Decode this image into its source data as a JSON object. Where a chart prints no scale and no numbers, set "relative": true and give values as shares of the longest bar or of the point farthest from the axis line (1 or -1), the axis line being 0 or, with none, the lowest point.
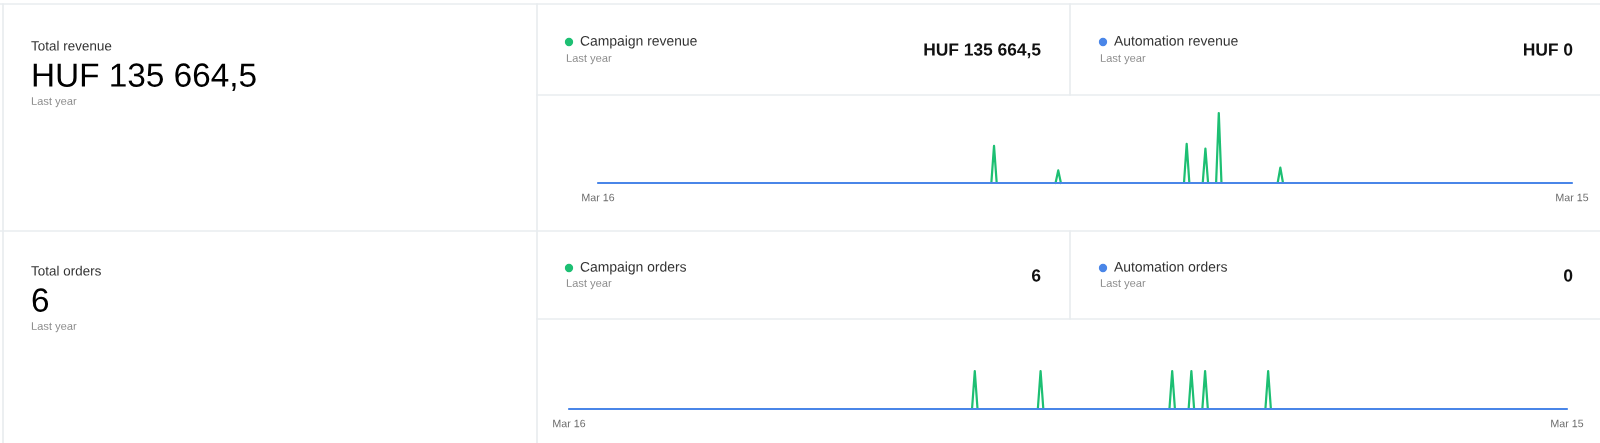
{
  "chart_data": [
    {
      "type": "other",
      "title": "Total revenue",
      "annotations": [
        "HUF 135 664,5",
        "Last year"
      ]
    },
    {
      "type": "line",
      "relative": true,
      "legend": "top",
      "categories": [
        "Mar 16",
        null,
        null,
        null,
        null,
        null,
        null,
        null,
        null,
        null,
        null,
        null,
        null,
        null,
        null,
        null,
        null,
        null,
        null,
        null,
        null,
        null,
        null,
        null,
        null,
        null,
        null,
        null,
        null,
        null,
        null,
        null,
        null,
        null,
        null,
        null,
        null,
        null,
        null,
        null,
        null,
        null,
        null,
        null,
        null,
        null,
        null,
        null,
        null,
        null,
        null,
        null,
        null,
        null,
        null,
        null,
        null,
        null,
        null,
        null,
        null,
        null,
        null,
        null,
        null,
        null,
        null,
        null,
        null,
        null,
        null,
        null,
        null,
        null,
        null,
        null,
        null,
        null,
        null,
        null,
        null,
        null,
        null,
        null,
        null,
        null,
        null,
        null,
        null,
        null,
        null,
        null,
        null,
        null,
        null,
        null,
        null,
        null,
        null,
        null,
        null,
        null,
        null,
        null,
        null,
        null,
        null,
        null,
        null,
        null,
        null,
        null,
        null,
        null,
        null,
        null,
        null,
        null,
        null,
        null,
        null,
        null,
        null,
        null,
        null,
        null,
        null,
        null,
        null,
        null,
        null,
        null,
        null,
        null,
        null,
        null,
        null,
        null,
        null,
        null,
        null,
        null,
        null,
        null,
        null,
        null,
        null,
        null,
        null,
        null,
        null,
        null,
        null,
        null,
        null,
        null,
        null,
        null,
        null,
        null,
        null,
        null,
        null,
        null,
        null,
        null,
        null,
        null,
        null,
        null,
        null,
        null,
        null,
        null,
        null,
        null,
        null,
        null,
        null,
        null,
        null,
        null,
        null,
        null,
        null,
        null,
        null,
        null,
        null,
        null,
        null,
        null,
        null,
        null,
        null,
        null,
        null,
        null,
        null,
        null,
        null,
        null,
        null,
        null,
        null,
        null,
        null,
        null,
        null,
        null,
        null,
        null,
        null,
        null,
        null,
        null,
        null,
        null,
        null,
        null,
        null,
        null,
        null,
        null,
        null,
        null,
        null,
        null,
        null,
        null,
        null,
        null,
        null,
        null,
        null,
        null,
        null,
        null,
        null,
        null,
        null,
        null,
        null,
        null,
        null,
        null,
        null,
        null,
        null,
        null,
        null,
        null,
        null,
        null,
        null,
        null,
        null,
        null,
        null,
        null,
        null,
        null,
        null,
        null,
        null,
        null,
        null,
        null,
        null,
        null,
        null,
        null,
        null,
        null,
        null,
        null,
        null,
        null,
        null,
        null,
        null,
        null,
        null,
        null,
        null,
        null,
        null,
        null,
        null,
        null,
        null,
        null,
        null,
        null,
        null,
        null,
        null,
        null,
        null,
        null,
        null,
        null,
        null,
        null,
        null,
        null,
        null,
        null,
        null,
        null,
        null,
        null,
        null,
        null,
        null,
        null,
        null,
        null,
        null,
        null,
        null,
        null,
        null,
        null,
        null,
        null,
        null,
        null,
        null,
        null,
        null,
        null,
        null,
        null,
        null,
        null,
        null,
        null,
        null,
        null,
        null,
        null,
        null,
        null,
        null,
        null,
        null,
        null,
        null,
        null,
        null,
        null,
        null,
        null,
        null,
        null,
        null,
        null,
        null,
        null,
        null,
        null,
        null,
        null,
        "Mar 15"
      ],
      "series": [
        {
          "name": "Campaign revenue",
          "color": "#1dbf73",
          "values": [
            null,
            null,
            null,
            null,
            null,
            null,
            null,
            null,
            null,
            null,
            null,
            null,
            null,
            null,
            null,
            null,
            null,
            null,
            null,
            null,
            null,
            null,
            null,
            null,
            null,
            null,
            null,
            null,
            null,
            null,
            null,
            null,
            null,
            null,
            null,
            null,
            null,
            null,
            null,
            null,
            null,
            null,
            null,
            null,
            null,
            null,
            null,
            null,
            null,
            null,
            null,
            null,
            null,
            null,
            null,
            null,
            null,
            null,
            null,
            null,
            null,
            null,
            null,
            null,
            null,
            null,
            null,
            null,
            null,
            null,
            null,
            null,
            null,
            null,
            null,
            null,
            null,
            null,
            null,
            null,
            null,
            null,
            null,
            null,
            null,
            null,
            null,
            null,
            null,
            null,
            null,
            null,
            null,
            null,
            null,
            null,
            null,
            null,
            null,
            null,
            null,
            null,
            null,
            null,
            null,
            null,
            null,
            null,
            null,
            null,
            null,
            null,
            null,
            null,
            null,
            null,
            null,
            null,
            null,
            null,
            null,
            null,
            null,
            null,
            null,
            null,
            null,
            null,
            null,
            null,
            null,
            null,
            null,
            null,
            null,
            null,
            null,
            null,
            null,
            null,
            null,
            null,
            null,
            null,
            null,
            null,
            null,
            0,
            0.53,
            0,
            null,
            null,
            null,
            null,
            null,
            null,
            null,
            null,
            null,
            null,
            null,
            null,
            null,
            null,
            null,
            null,
            null,
            null,
            null,
            null,
            null,
            0,
            0.18,
            0,
            null,
            null,
            null,
            null,
            null,
            null,
            null,
            null,
            null,
            null,
            null,
            null,
            null,
            null,
            null,
            null,
            null,
            null,
            null,
            null,
            null,
            null,
            null,
            null,
            null,
            null,
            null,
            null,
            null,
            null,
            null,
            null,
            null,
            null,
            null,
            null,
            null,
            null,
            null,
            null,
            null,
            null,
            null,
            null,
            null,
            0,
            0.56,
            0,
            null,
            null,
            null,
            null,
            0,
            0.49,
            0,
            null,
            null,
            0,
            1,
            0,
            null,
            null,
            null,
            null,
            null,
            null,
            null,
            null,
            null,
            null,
            null,
            null,
            null,
            null,
            null,
            null,
            null,
            null,
            null,
            null,
            0,
            0.22,
            0,
            null,
            null,
            null,
            null,
            null,
            null,
            null,
            null,
            null,
            null,
            null,
            null,
            null,
            null,
            null,
            null,
            null,
            null,
            null,
            null,
            null,
            null,
            null,
            null,
            null,
            null,
            null,
            null,
            null,
            null,
            null,
            null,
            null,
            null,
            null,
            null,
            null,
            null,
            null,
            null,
            null,
            null,
            null,
            null,
            null,
            null,
            null,
            null,
            null,
            null,
            null,
            null,
            null,
            null,
            null,
            null,
            null,
            null,
            null,
            null,
            null,
            null,
            null,
            null,
            null,
            null,
            null,
            null,
            null,
            null,
            null,
            null,
            null,
            null,
            null,
            null,
            null,
            null,
            null,
            null,
            null,
            null,
            null,
            null,
            null,
            null,
            null,
            null,
            null,
            null,
            null,
            null,
            null,
            null,
            null,
            null,
            null,
            null,
            null,
            null,
            null,
            null,
            null,
            null,
            null,
            null,
            null,
            null
          ]
        },
        {
          "name": "Automation revenue",
          "color": "#4a86e8",
          "values": [
            0,
            0,
            0,
            0,
            0,
            0,
            0,
            0,
            0,
            0,
            0,
            0,
            0,
            0,
            0,
            0,
            0,
            0,
            0,
            0,
            0,
            0,
            0,
            0,
            0,
            0,
            0,
            0,
            0,
            0,
            0,
            0,
            0,
            0,
            0,
            0,
            0,
            0,
            0,
            0,
            0,
            0,
            0,
            0,
            0,
            0,
            0,
            0,
            0,
            0,
            0,
            0,
            0,
            0,
            0,
            0,
            0,
            0,
            0,
            0,
            0,
            0,
            0,
            0,
            0,
            0,
            0,
            0,
            0,
            0,
            0,
            0,
            0,
            0,
            0,
            0,
            0,
            0,
            0,
            0,
            0,
            0,
            0,
            0,
            0,
            0,
            0,
            0,
            0,
            0,
            0,
            0,
            0,
            0,
            0,
            0,
            0,
            0,
            0,
            0,
            0,
            0,
            0,
            0,
            0,
            0,
            0,
            0,
            0,
            0,
            0,
            0,
            0,
            0,
            0,
            0,
            0,
            0,
            0,
            0,
            0,
            0,
            0,
            0,
            0,
            0,
            0,
            0,
            0,
            0,
            0,
            0,
            0,
            0,
            0,
            0,
            0,
            0,
            0,
            0,
            0,
            0,
            0,
            0,
            0,
            0,
            0,
            0,
            0,
            0,
            0,
            0,
            0,
            0,
            0,
            0,
            0,
            0,
            0,
            0,
            0,
            0,
            0,
            0,
            0,
            0,
            0,
            0,
            0,
            0,
            0,
            0,
            0,
            0,
            0,
            0,
            0,
            0,
            0,
            0,
            0,
            0,
            0,
            0,
            0,
            0,
            0,
            0,
            0,
            0,
            0,
            0,
            0,
            0,
            0,
            0,
            0,
            0,
            0,
            0,
            0,
            0,
            0,
            0,
            0,
            0,
            0,
            0,
            0,
            0,
            0,
            0,
            0,
            0,
            0,
            0,
            0,
            0,
            0,
            0,
            0,
            0,
            0,
            0,
            0,
            0,
            0,
            0,
            0,
            0,
            0,
            0,
            0,
            0,
            0,
            0,
            0,
            0,
            0,
            0,
            0,
            0,
            0,
            0,
            0,
            0,
            0,
            0,
            0,
            0,
            0,
            0,
            0,
            0,
            0,
            0,
            0,
            0,
            0,
            0,
            0,
            0,
            0,
            0,
            0,
            0,
            0,
            0,
            0,
            0,
            0,
            0,
            0,
            0,
            0,
            0,
            0,
            0,
            0,
            0,
            0,
            0,
            0,
            0,
            0,
            0,
            0,
            0,
            0,
            0,
            0,
            0,
            0,
            0,
            0,
            0,
            0,
            0,
            0,
            0,
            0,
            0,
            0,
            0,
            0,
            0,
            0,
            0,
            0,
            0,
            0,
            0,
            0,
            0,
            0,
            0,
            0,
            0,
            0,
            0,
            0,
            0,
            0,
            0,
            0,
            0,
            0,
            0,
            0,
            0,
            0,
            0,
            0,
            0,
            0,
            0,
            0,
            0,
            0,
            0,
            0,
            0,
            0,
            0,
            0,
            0,
            0,
            0,
            0,
            0,
            0,
            0,
            0,
            0,
            0,
            0,
            0,
            0,
            0,
            0,
            0,
            0,
            0,
            0,
            0
          ]
        }
      ],
      "annotations": [
        "Last year",
        "HUF 135 664,5",
        "Last year",
        "HUF 0"
      ]
    },
    {
      "type": "other",
      "title": "Total orders",
      "annotations": [
        "6",
        "Last year"
      ]
    },
    {
      "type": "line",
      "relative": true,
      "legend": "top",
      "categories": [
        "Mar 16",
        null,
        null,
        null,
        null,
        null,
        null,
        null,
        null,
        null,
        null,
        null,
        null,
        null,
        null,
        null,
        null,
        null,
        null,
        null,
        null,
        null,
        null,
        null,
        null,
        null,
        null,
        null,
        null,
        null,
        null,
        null,
        null,
        null,
        null,
        null,
        null,
        null,
        null,
        null,
        null,
        null,
        null,
        null,
        null,
        null,
        null,
        null,
        null,
        null,
        null,
        null,
        null,
        null,
        null,
        null,
        null,
        null,
        null,
        null,
        null,
        null,
        null,
        null,
        null,
        null,
        null,
        null,
        null,
        null,
        null,
        null,
        null,
        null,
        null,
        null,
        null,
        null,
        null,
        null,
        null,
        null,
        null,
        null,
        null,
        null,
        null,
        null,
        null,
        null,
        null,
        null,
        null,
        null,
        null,
        null,
        null,
        null,
        null,
        null,
        null,
        null,
        null,
        null,
        null,
        null,
        null,
        null,
        null,
        null,
        null,
        null,
        null,
        null,
        null,
        null,
        null,
        null,
        null,
        null,
        null,
        null,
        null,
        null,
        null,
        null,
        null,
        null,
        null,
        null,
        null,
        null,
        null,
        null,
        null,
        null,
        null,
        null,
        null,
        null,
        null,
        null,
        null,
        null,
        null,
        null,
        null,
        null,
        null,
        null,
        null,
        null,
        null,
        null,
        null,
        null,
        null,
        null,
        null,
        null,
        null,
        null,
        null,
        null,
        null,
        null,
        null,
        null,
        null,
        null,
        null,
        null,
        null,
        null,
        null,
        null,
        null,
        null,
        null,
        null,
        null,
        null,
        null,
        null,
        null,
        null,
        null,
        null,
        null,
        null,
        null,
        null,
        null,
        null,
        null,
        null,
        null,
        null,
        null,
        null,
        null,
        null,
        null,
        null,
        null,
        null,
        null,
        null,
        null,
        null,
        null,
        null,
        null,
        null,
        null,
        null,
        null,
        null,
        null,
        null,
        null,
        null,
        null,
        null,
        null,
        null,
        null,
        null,
        null,
        null,
        null,
        null,
        null,
        null,
        null,
        null,
        null,
        null,
        null,
        null,
        null,
        null,
        null,
        null,
        null,
        null,
        null,
        null,
        null,
        null,
        null,
        null,
        null,
        null,
        null,
        null,
        null,
        null,
        null,
        null,
        null,
        null,
        null,
        null,
        null,
        null,
        null,
        null,
        null,
        null,
        null,
        null,
        null,
        null,
        null,
        null,
        null,
        null,
        null,
        null,
        null,
        null,
        null,
        null,
        null,
        null,
        null,
        null,
        null,
        null,
        null,
        null,
        null,
        null,
        null,
        null,
        null,
        null,
        null,
        null,
        null,
        null,
        null,
        null,
        null,
        null,
        null,
        null,
        null,
        null,
        null,
        null,
        null,
        null,
        null,
        null,
        null,
        null,
        null,
        null,
        null,
        null,
        null,
        null,
        null,
        null,
        null,
        null,
        null,
        null,
        null,
        null,
        null,
        null,
        null,
        null,
        null,
        null,
        null,
        null,
        null,
        null,
        null,
        null,
        null,
        null,
        null,
        null,
        null,
        null,
        null,
        null,
        null,
        null,
        null,
        null,
        null,
        null,
        null,
        null,
        null,
        null,
        null,
        null,
        "Mar 15"
      ],
      "series": [
        {
          "name": "Campaign orders",
          "color": "#1dbf73",
          "values": [
            null,
            null,
            null,
            null,
            null,
            null,
            null,
            null,
            null,
            null,
            null,
            null,
            null,
            null,
            null,
            null,
            null,
            null,
            null,
            null,
            null,
            null,
            null,
            null,
            null,
            null,
            null,
            null,
            null,
            null,
            null,
            null,
            null,
            null,
            null,
            null,
            null,
            null,
            null,
            null,
            null,
            null,
            null,
            null,
            null,
            null,
            null,
            null,
            null,
            null,
            null,
            null,
            null,
            null,
            null,
            null,
            null,
            null,
            null,
            null,
            null,
            null,
            null,
            null,
            null,
            null,
            null,
            null,
            null,
            null,
            null,
            null,
            null,
            null,
            null,
            null,
            null,
            null,
            null,
            null,
            null,
            null,
            null,
            null,
            null,
            null,
            null,
            null,
            null,
            null,
            null,
            null,
            null,
            null,
            null,
            null,
            null,
            null,
            null,
            null,
            null,
            null,
            null,
            null,
            null,
            null,
            null,
            null,
            null,
            null,
            null,
            null,
            null,
            null,
            null,
            null,
            null,
            null,
            null,
            null,
            null,
            null,
            null,
            null,
            null,
            null,
            null,
            null,
            null,
            null,
            null,
            null,
            null,
            null,
            null,
            null,
            null,
            null,
            null,
            null,
            null,
            null,
            null,
            null,
            null,
            null,
            null,
            0,
            1,
            0,
            null,
            null,
            null,
            null,
            null,
            null,
            null,
            null,
            null,
            null,
            null,
            null,
            null,
            null,
            null,
            null,
            null,
            null,
            null,
            null,
            null,
            0,
            1,
            0,
            null,
            null,
            null,
            null,
            null,
            null,
            null,
            null,
            null,
            null,
            null,
            null,
            null,
            null,
            null,
            null,
            null,
            null,
            null,
            null,
            null,
            null,
            null,
            null,
            null,
            null,
            null,
            null,
            null,
            null,
            null,
            null,
            null,
            null,
            null,
            null,
            null,
            null,
            null,
            null,
            null,
            null,
            null,
            null,
            null,
            0,
            1,
            0,
            null,
            null,
            null,
            null,
            0,
            1,
            0,
            null,
            null,
            0,
            1,
            0,
            null,
            null,
            null,
            null,
            null,
            null,
            null,
            null,
            null,
            null,
            null,
            null,
            null,
            null,
            null,
            null,
            null,
            null,
            null,
            null,
            0,
            1,
            0,
            null,
            null,
            null,
            null,
            null,
            null,
            null,
            null,
            null,
            null,
            null,
            null,
            null,
            null,
            null,
            null,
            null,
            null,
            null,
            null,
            null,
            null,
            null,
            null,
            null,
            null,
            null,
            null,
            null,
            null,
            null,
            null,
            null,
            null,
            null,
            null,
            null,
            null,
            null,
            null,
            null,
            null,
            null,
            null,
            null,
            null,
            null,
            null,
            null,
            null,
            null,
            null,
            null,
            null,
            null,
            null,
            null,
            null,
            null,
            null,
            null,
            null,
            null,
            null,
            null,
            null,
            null,
            null,
            null,
            null,
            null,
            null,
            null,
            null,
            null,
            null,
            null,
            null,
            null,
            null,
            null,
            null,
            null,
            null,
            null,
            null,
            null,
            null,
            null,
            null,
            null,
            null,
            null,
            null,
            null,
            null,
            null,
            null,
            null,
            null,
            null,
            null,
            null,
            null,
            null,
            null,
            null,
            null
          ]
        },
        {
          "name": "Automation orders",
          "color": "#4a86e8",
          "values": [
            0,
            0,
            0,
            0,
            0,
            0,
            0,
            0,
            0,
            0,
            0,
            0,
            0,
            0,
            0,
            0,
            0,
            0,
            0,
            0,
            0,
            0,
            0,
            0,
            0,
            0,
            0,
            0,
            0,
            0,
            0,
            0,
            0,
            0,
            0,
            0,
            0,
            0,
            0,
            0,
            0,
            0,
            0,
            0,
            0,
            0,
            0,
            0,
            0,
            0,
            0,
            0,
            0,
            0,
            0,
            0,
            0,
            0,
            0,
            0,
            0,
            0,
            0,
            0,
            0,
            0,
            0,
            0,
            0,
            0,
            0,
            0,
            0,
            0,
            0,
            0,
            0,
            0,
            0,
            0,
            0,
            0,
            0,
            0,
            0,
            0,
            0,
            0,
            0,
            0,
            0,
            0,
            0,
            0,
            0,
            0,
            0,
            0,
            0,
            0,
            0,
            0,
            0,
            0,
            0,
            0,
            0,
            0,
            0,
            0,
            0,
            0,
            0,
            0,
            0,
            0,
            0,
            0,
            0,
            0,
            0,
            0,
            0,
            0,
            0,
            0,
            0,
            0,
            0,
            0,
            0,
            0,
            0,
            0,
            0,
            0,
            0,
            0,
            0,
            0,
            0,
            0,
            0,
            0,
            0,
            0,
            0,
            0,
            0,
            0,
            0,
            0,
            0,
            0,
            0,
            0,
            0,
            0,
            0,
            0,
            0,
            0,
            0,
            0,
            0,
            0,
            0,
            0,
            0,
            0,
            0,
            0,
            0,
            0,
            0,
            0,
            0,
            0,
            0,
            0,
            0,
            0,
            0,
            0,
            0,
            0,
            0,
            0,
            0,
            0,
            0,
            0,
            0,
            0,
            0,
            0,
            0,
            0,
            0,
            0,
            0,
            0,
            0,
            0,
            0,
            0,
            0,
            0,
            0,
            0,
            0,
            0,
            0,
            0,
            0,
            0,
            0,
            0,
            0,
            0,
            0,
            0,
            0,
            0,
            0,
            0,
            0,
            0,
            0,
            0,
            0,
            0,
            0,
            0,
            0,
            0,
            0,
            0,
            0,
            0,
            0,
            0,
            0,
            0,
            0,
            0,
            0,
            0,
            0,
            0,
            0,
            0,
            0,
            0,
            0,
            0,
            0,
            0,
            0,
            0,
            0,
            0,
            0,
            0,
            0,
            0,
            0,
            0,
            0,
            0,
            0,
            0,
            0,
            0,
            0,
            0,
            0,
            0,
            0,
            0,
            0,
            0,
            0,
            0,
            0,
            0,
            0,
            0,
            0,
            0,
            0,
            0,
            0,
            0,
            0,
            0,
            0,
            0,
            0,
            0,
            0,
            0,
            0,
            0,
            0,
            0,
            0,
            0,
            0,
            0,
            0,
            0,
            0,
            0,
            0,
            0,
            0,
            0,
            0,
            0,
            0,
            0,
            0,
            0,
            0,
            0,
            0,
            0,
            0,
            0,
            0,
            0,
            0,
            0,
            0,
            0,
            0,
            0,
            0,
            0,
            0,
            0,
            0,
            0,
            0,
            0,
            0,
            0,
            0,
            0,
            0,
            0,
            0,
            0,
            0,
            0,
            0,
            0,
            0,
            0,
            0,
            0,
            0,
            0,
            0
          ]
        }
      ],
      "annotations": [
        "Last year",
        "6",
        "Last year",
        "0"
      ]
    }
  ]
}
